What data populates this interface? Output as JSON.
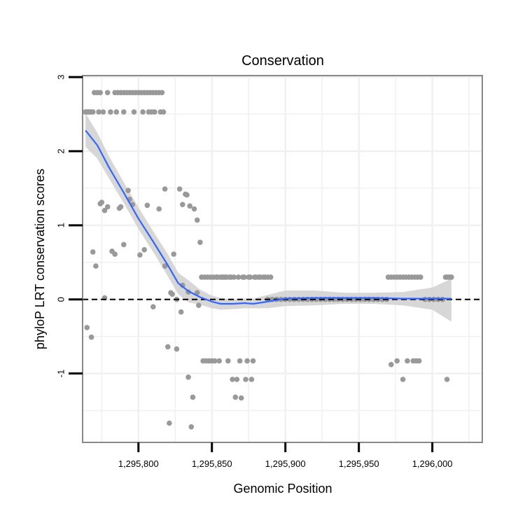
{
  "chart_data": {
    "type": "scatter",
    "title": "Conservation",
    "xlabel": "Genomic Position",
    "ylabel": "phyloP LRT conservation scores",
    "xlim": [
      1295762,
      1296034
    ],
    "ylim": [
      -1.93,
      3.02
    ],
    "x_ticks": [
      {
        "value": 1295800,
        "label": "1,295,800"
      },
      {
        "value": 1295850,
        "label": "1,295,850"
      },
      {
        "value": 1295900,
        "label": "1,295,900"
      },
      {
        "value": 1295950,
        "label": "1,295,950"
      },
      {
        "value": 1296000,
        "label": "1,296,000"
      }
    ],
    "y_ticks": [
      {
        "value": -1,
        "label": "-1"
      },
      {
        "value": 0,
        "label": "0"
      },
      {
        "value": 1,
        "label": "1"
      },
      {
        "value": 2,
        "label": "2"
      },
      {
        "value": 3,
        "label": "3"
      }
    ],
    "grid": true,
    "reference_line": {
      "y": 0,
      "style": "dashed",
      "color": "#000000"
    },
    "colors": {
      "points": "#999999",
      "smooth_line": "#3366ff",
      "confidence_band": "#d0d0d0",
      "panel_border": "#888888",
      "grid": "#f0f0f0"
    },
    "series": [
      {
        "name": "phyloP scores",
        "type": "scatter",
        "points": [
          [
            1295764,
            2.53
          ],
          [
            1295765,
            2.53
          ],
          [
            1295766,
            2.53
          ],
          [
            1295767,
            2.53
          ],
          [
            1295768,
            2.53
          ],
          [
            1295769,
            2.53
          ],
          [
            1295765,
            -0.38
          ],
          [
            1295768,
            -0.51
          ],
          [
            1295769,
            0.64
          ],
          [
            1295770,
            2.79
          ],
          [
            1295772,
            2.79
          ],
          [
            1295774,
            2.79
          ],
          [
            1295771,
            0.45
          ],
          [
            1295774,
            1.29
          ],
          [
            1295775,
            1.31
          ],
          [
            1295773,
            2.53
          ],
          [
            1295776,
            2.53
          ],
          [
            1295777,
            0.02
          ],
          [
            1295777,
            1.2
          ],
          [
            1295779,
            1.25
          ],
          [
            1295779,
            2.79
          ],
          [
            1295781,
            2.53
          ],
          [
            1295782,
            0.65
          ],
          [
            1295784,
            2.79
          ],
          [
            1295784,
            0.61
          ],
          [
            1295785,
            2.53
          ],
          [
            1295786,
            2.79
          ],
          [
            1295787,
            1.23
          ],
          [
            1295788,
            2.79
          ],
          [
            1295788,
            1.25
          ],
          [
            1295790,
            2.79
          ],
          [
            1295790,
            2.53
          ],
          [
            1295790,
            0.74
          ],
          [
            1295792,
            2.79
          ],
          [
            1295793,
            1.47
          ],
          [
            1295794,
            2.79
          ],
          [
            1295794,
            1.35
          ],
          [
            1295796,
            2.79
          ],
          [
            1295796,
            1.28
          ],
          [
            1295797,
            2.53
          ],
          [
            1295798,
            2.79
          ],
          [
            1295800,
            2.79
          ],
          [
            1295801,
            0.6
          ],
          [
            1295802,
            2.79
          ],
          [
            1295803,
            2.53
          ],
          [
            1295804,
            2.79
          ],
          [
            1295804,
            0.67
          ],
          [
            1295806,
            2.79
          ],
          [
            1295806,
            1.27
          ],
          [
            1295807,
            2.53
          ],
          [
            1295808,
            2.79
          ],
          [
            1295809,
            2.53
          ],
          [
            1295810,
            2.79
          ],
          [
            1295810,
            -0.1
          ],
          [
            1295811,
            2.53
          ],
          [
            1295812,
            2.79
          ],
          [
            1295814,
            2.79
          ],
          [
            1295814,
            1.22
          ],
          [
            1295815,
            2.53
          ],
          [
            1295816,
            2.79
          ],
          [
            1295817,
            2.53
          ],
          [
            1295818,
            1.49
          ],
          [
            1295818,
            0.45
          ],
          [
            1295820,
            -0.64
          ],
          [
            1295821,
            -1.67
          ],
          [
            1295822,
            0.09
          ],
          [
            1295823,
            0.07
          ],
          [
            1295824,
            0.61
          ],
          [
            1295826,
            -0.67
          ],
          [
            1295826,
            0.0
          ],
          [
            1295828,
            1.49
          ],
          [
            1295829,
            -0.17
          ],
          [
            1295830,
            0.19
          ],
          [
            1295830,
            1.28
          ],
          [
            1295832,
            1.42
          ],
          [
            1295833,
            1.41
          ],
          [
            1295834,
            -1.05
          ],
          [
            1295834,
            0.1
          ],
          [
            1295835,
            1.26
          ],
          [
            1295836,
            -1.72
          ],
          [
            1295837,
            -1.32
          ],
          [
            1295838,
            1.22
          ],
          [
            1295840,
            1.07
          ],
          [
            1295840,
            0.09
          ],
          [
            1295841,
            -0.08
          ],
          [
            1295842,
            0.77
          ],
          [
            1295843,
            0.3
          ],
          [
            1295844,
            -0.83
          ],
          [
            1295845,
            0.3
          ],
          [
            1295846,
            -0.83
          ],
          [
            1295847,
            0.3
          ],
          [
            1295848,
            -0.83
          ],
          [
            1295849,
            0.3
          ],
          [
            1295850,
            -0.83
          ],
          [
            1295851,
            0.3
          ],
          [
            1295852,
            -0.83
          ],
          [
            1295853,
            0.3
          ],
          [
            1295854,
            0.3
          ],
          [
            1295855,
            -0.83
          ],
          [
            1295856,
            0.3
          ],
          [
            1295857,
            0.3
          ],
          [
            1295858,
            0.3
          ],
          [
            1295859,
            0.3
          ],
          [
            1295860,
            0.3
          ],
          [
            1295861,
            -0.83
          ],
          [
            1295862,
            0.3
          ],
          [
            1295863,
            0.3
          ],
          [
            1295864,
            -1.08
          ],
          [
            1295865,
            0.3
          ],
          [
            1295866,
            -1.32
          ],
          [
            1295867,
            -1.08
          ],
          [
            1295868,
            0.3
          ],
          [
            1295869,
            -0.83
          ],
          [
            1295870,
            -1.33
          ],
          [
            1295871,
            0.3
          ],
          [
            1295872,
            0.3
          ],
          [
            1295873,
            -1.08
          ],
          [
            1295874,
            -0.83
          ],
          [
            1295875,
            0.3
          ],
          [
            1295876,
            0.3
          ],
          [
            1295877,
            -1.08
          ],
          [
            1295878,
            -0.83
          ],
          [
            1295879,
            0.3
          ],
          [
            1295880,
            0.3
          ],
          [
            1295882,
            0.3
          ],
          [
            1295883,
            0.3
          ],
          [
            1295885,
            0.3
          ],
          [
            1295886,
            0.3
          ],
          [
            1295888,
            0.3
          ],
          [
            1295890,
            0.3
          ],
          [
            1295888,
            0.0
          ],
          [
            1295891,
            0.0
          ],
          [
            1295894,
            0.0
          ],
          [
            1295897,
            0.0
          ],
          [
            1295900,
            0.0
          ],
          [
            1295903,
            0.0
          ],
          [
            1295906,
            0.0
          ],
          [
            1295909,
            0.0
          ],
          [
            1295912,
            0.0
          ],
          [
            1295915,
            0.0
          ],
          [
            1295918,
            0.0
          ],
          [
            1295921,
            0.0
          ],
          [
            1295924,
            0.0
          ],
          [
            1295927,
            0.0
          ],
          [
            1295930,
            0.0
          ],
          [
            1295933,
            0.0
          ],
          [
            1295936,
            0.0
          ],
          [
            1295939,
            0.0
          ],
          [
            1295942,
            0.0
          ],
          [
            1295945,
            0.0
          ],
          [
            1295948,
            0.0
          ],
          [
            1295951,
            0.0
          ],
          [
            1295954,
            0.0
          ],
          [
            1295957,
            0.0
          ],
          [
            1295960,
            0.0
          ],
          [
            1295963,
            0.0
          ],
          [
            1295966,
            0.0
          ],
          [
            1295969,
            0.0
          ],
          [
            1295970,
            0.3
          ],
          [
            1295972,
            0.3
          ],
          [
            1295974,
            0.3
          ],
          [
            1295976,
            0.3
          ],
          [
            1295978,
            0.3
          ],
          [
            1295980,
            0.3
          ],
          [
            1295982,
            0.3
          ],
          [
            1295984,
            0.3
          ],
          [
            1295986,
            0.3
          ],
          [
            1295972,
            -0.88
          ],
          [
            1295976,
            -0.83
          ],
          [
            1295980,
            -1.08
          ],
          [
            1295983,
            -0.83
          ],
          [
            1295987,
            -0.83
          ],
          [
            1295989,
            -0.83
          ],
          [
            1295991,
            -0.83
          ],
          [
            1295988,
            0.3
          ],
          [
            1295990,
            0.3
          ],
          [
            1295992,
            0.3
          ],
          [
            1295995,
            0.0
          ],
          [
            1295998,
            0.0
          ],
          [
            1296001,
            0.0
          ],
          [
            1296004,
            0.0
          ],
          [
            1296007,
            0.0
          ],
          [
            1296009,
            0.3
          ],
          [
            1296010,
            0.3
          ],
          [
            1296010,
            -1.08
          ],
          [
            1296011,
            0.3
          ],
          [
            1296012,
            0.3
          ],
          [
            1296013,
            0.3
          ]
        ]
      },
      {
        "name": "loess smooth",
        "type": "line",
        "points": [
          [
            1295764,
            2.28
          ],
          [
            1295772,
            2.08
          ],
          [
            1295780,
            1.78
          ],
          [
            1295790,
            1.44
          ],
          [
            1295800,
            1.09
          ],
          [
            1295810,
            0.78
          ],
          [
            1295820,
            0.46
          ],
          [
            1295827,
            0.22
          ],
          [
            1295834,
            0.11
          ],
          [
            1295842,
            0.03
          ],
          [
            1295850,
            -0.03
          ],
          [
            1295856,
            -0.06
          ],
          [
            1295865,
            -0.06
          ],
          [
            1295872,
            -0.05
          ],
          [
            1295878,
            -0.06
          ],
          [
            1295888,
            -0.03
          ],
          [
            1295900,
            0.01
          ],
          [
            1295920,
            0.02
          ],
          [
            1295940,
            0.02
          ],
          [
            1295960,
            0.02
          ],
          [
            1295980,
            0.01
          ],
          [
            1296000,
            0.01
          ],
          [
            1296013,
            0.01
          ]
        ]
      },
      {
        "name": "confidence band",
        "type": "area",
        "upper": [
          [
            1295764,
            2.51
          ],
          [
            1295772,
            2.25
          ],
          [
            1295780,
            1.93
          ],
          [
            1295790,
            1.58
          ],
          [
            1295800,
            1.24
          ],
          [
            1295810,
            0.92
          ],
          [
            1295820,
            0.61
          ],
          [
            1295827,
            0.36
          ],
          [
            1295834,
            0.26
          ],
          [
            1295842,
            0.13
          ],
          [
            1295850,
            0.05
          ],
          [
            1295856,
            0.02
          ],
          [
            1295865,
            0.0
          ],
          [
            1295872,
            0.01
          ],
          [
            1295878,
            0.01
          ],
          [
            1295888,
            0.06
          ],
          [
            1295900,
            0.12
          ],
          [
            1295920,
            0.12
          ],
          [
            1295940,
            0.09
          ],
          [
            1295960,
            0.09
          ],
          [
            1295980,
            0.1
          ],
          [
            1296000,
            0.16
          ],
          [
            1296013,
            0.28
          ]
        ],
        "lower": [
          [
            1295764,
            2.06
          ],
          [
            1295772,
            1.9
          ],
          [
            1295780,
            1.63
          ],
          [
            1295790,
            1.3
          ],
          [
            1295800,
            0.95
          ],
          [
            1295810,
            0.64
          ],
          [
            1295820,
            0.31
          ],
          [
            1295827,
            0.07
          ],
          [
            1295834,
            -0.04
          ],
          [
            1295842,
            -0.07
          ],
          [
            1295850,
            -0.12
          ],
          [
            1295856,
            -0.14
          ],
          [
            1295865,
            -0.13
          ],
          [
            1295872,
            -0.12
          ],
          [
            1295878,
            -0.12
          ],
          [
            1295888,
            -0.12
          ],
          [
            1295900,
            -0.09
          ],
          [
            1295920,
            -0.08
          ],
          [
            1295940,
            -0.06
          ],
          [
            1295960,
            -0.06
          ],
          [
            1295980,
            -0.08
          ],
          [
            1296000,
            -0.14
          ],
          [
            1296013,
            -0.3
          ]
        ]
      }
    ]
  }
}
